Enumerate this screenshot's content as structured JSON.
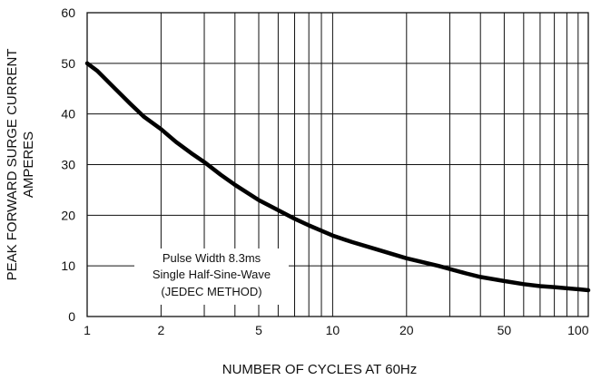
{
  "chart_data": {
    "type": "line",
    "title": "",
    "xlabel": "NUMBER OF CYCLES AT 60Hz",
    "ylabel": [
      "PEAK FORWARD SURGE CURRENT",
      "AMPERES"
    ],
    "x_scale": "log",
    "xlim": [
      1,
      110
    ],
    "ylim": [
      0,
      60
    ],
    "grid": true,
    "x_ticks": [
      1,
      2,
      5,
      10,
      20,
      50,
      100
    ],
    "x_minor_gridlines": [
      3,
      4,
      6,
      7,
      8,
      9,
      30,
      40,
      60,
      70,
      80,
      90
    ],
    "y_ticks": [
      0,
      10,
      20,
      30,
      40,
      50,
      60
    ],
    "series": [
      {
        "x": [
          1,
          1.1,
          1.3,
          1.5,
          1.7,
          2,
          2.3,
          2.7,
          3,
          3.5,
          4,
          5,
          6,
          7,
          8,
          10,
          12,
          15,
          20,
          27,
          35,
          40,
          50,
          60,
          70,
          80,
          100,
          110
        ],
        "y": [
          50,
          48.5,
          45,
          42,
          39.5,
          37,
          34.5,
          32,
          30.5,
          28,
          26,
          23,
          21,
          19.3,
          18,
          16,
          14.7,
          13.3,
          11.5,
          10,
          8.5,
          7.8,
          7,
          6.4,
          6,
          5.8,
          5.4,
          5.2
        ]
      }
    ],
    "annotation": [
      "Pulse Width 8.3ms",
      "Single Half-Sine-Wave",
      "(JEDEC METHOD)"
    ]
  }
}
